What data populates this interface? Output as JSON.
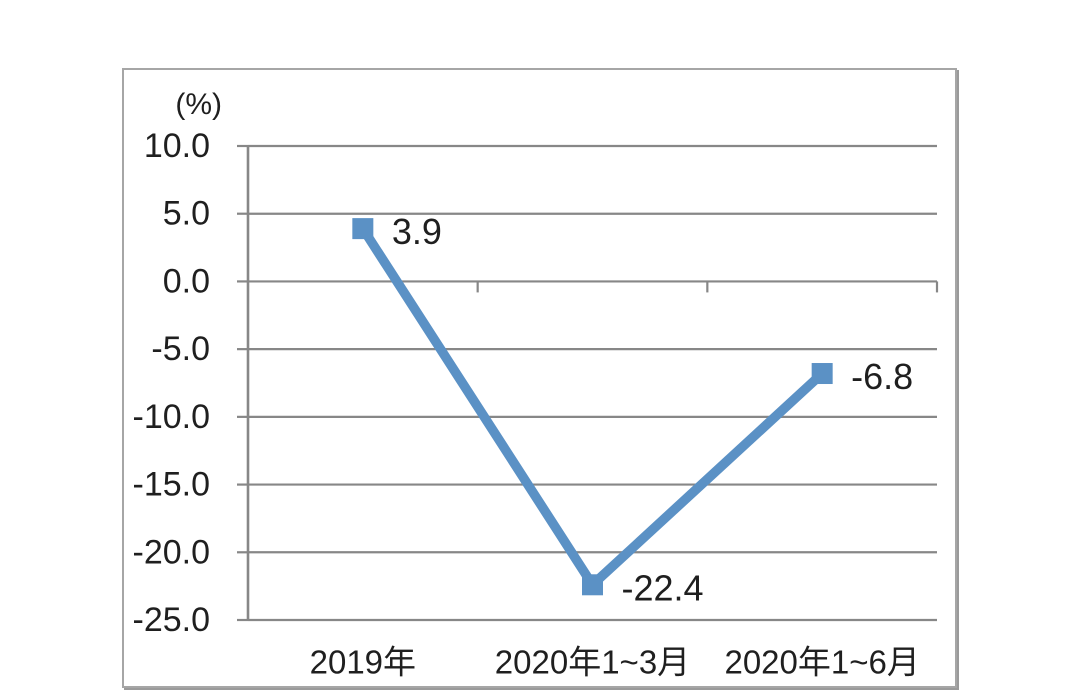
{
  "page": {
    "background": "#ffffff"
  },
  "chart_data": {
    "type": "line",
    "title": "",
    "unit_label": "(%)",
    "categories": [
      "2019年",
      "2020年1~3月",
      "2020年1~6月"
    ],
    "values": [
      3.9,
      -22.4,
      -6.8
    ],
    "point_labels": [
      "3.9",
      "-22.4",
      "-6.8"
    ],
    "y_ticks": [
      10.0,
      5.0,
      0.0,
      -5.0,
      -10.0,
      -15.0,
      -20.0,
      -25.0
    ],
    "y_tick_labels": [
      "10.0",
      "5.0",
      "0.0",
      "-5.0",
      "-10.0",
      "-15.0",
      "-20.0",
      "-25.0"
    ],
    "ylim": [
      -25,
      10
    ],
    "xlabel": "",
    "ylabel": "(%)",
    "grid": true,
    "legend_position": "none",
    "marker": "square",
    "colors": {
      "series": "#5b91c5",
      "grid": "#878787",
      "axis": "#878787",
      "text": "#1f1f1f",
      "frame_border": "#a6a6a6"
    }
  }
}
